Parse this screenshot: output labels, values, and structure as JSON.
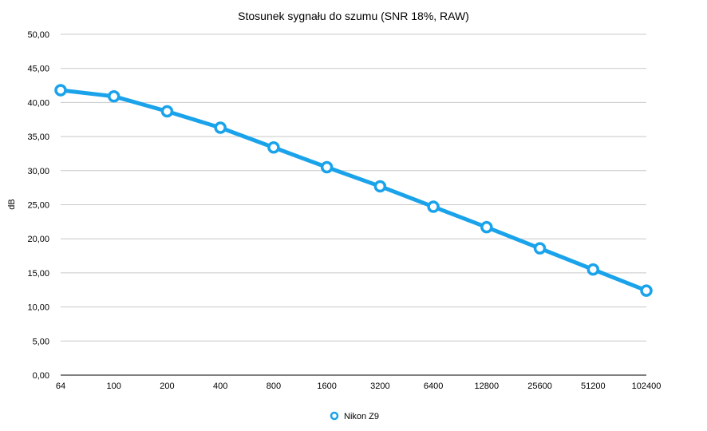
{
  "colors": {
    "series": "#1aa3ea",
    "grid": "#c8c8c8",
    "background": "#ffffff"
  },
  "chart_data": {
    "type": "line",
    "title": "Stosunek sygnału do szumu (SNR 18%, RAW)",
    "xlabel": "",
    "ylabel": "dB",
    "categories": [
      "64",
      "100",
      "200",
      "400",
      "800",
      "1600",
      "3200",
      "6400",
      "12800",
      "25600",
      "51200",
      "102400"
    ],
    "y_ticks": [
      "0,00",
      "5,00",
      "10,00",
      "15,00",
      "20,00",
      "25,00",
      "30,00",
      "35,00",
      "40,00",
      "45,00",
      "50,00"
    ],
    "ylim": [
      0,
      50
    ],
    "grid": true,
    "legend_position": "bottom-center",
    "series": [
      {
        "name": "Nikon Z9",
        "values": [
          41.8,
          40.9,
          38.7,
          36.3,
          33.4,
          30.5,
          27.7,
          24.7,
          21.7,
          18.6,
          15.5,
          12.4
        ]
      }
    ]
  }
}
